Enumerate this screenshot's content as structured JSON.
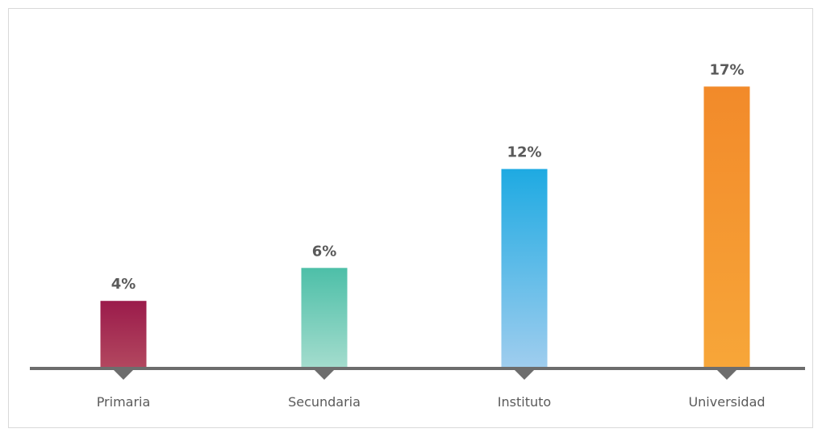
{
  "chart_data": {
    "type": "bar",
    "title": "",
    "xlabel": "",
    "ylabel": "",
    "categories": [
      "Primaria",
      "Secundaria",
      "Instituto",
      "Universidad"
    ],
    "values": [
      4,
      6,
      12,
      17
    ],
    "value_labels": [
      "4%",
      "6%",
      "12%",
      "17%"
    ],
    "unit": "%",
    "ylim": [
      0,
      20
    ],
    "grid": false,
    "legend": "none",
    "colors": [
      {
        "top": "#9b1b4b",
        "bottom": "#b2475f"
      },
      {
        "top": "#4dbfa8",
        "bottom": "#a3dccd"
      },
      {
        "top": "#1eaae2",
        "bottom": "#9fcdee"
      },
      {
        "top": "#f28a2a",
        "bottom": "#f7a639"
      }
    ],
    "axis_color": "#6d6d6d"
  }
}
